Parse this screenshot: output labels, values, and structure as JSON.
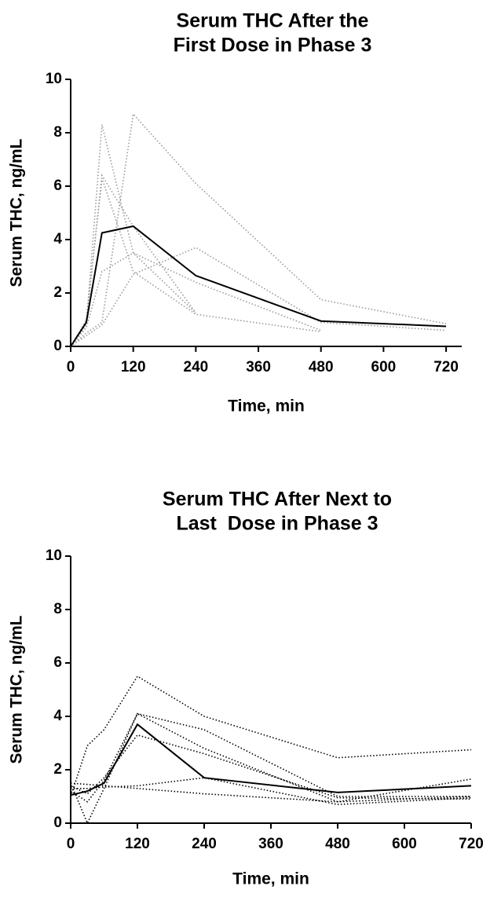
{
  "chart_data": [
    {
      "type": "line",
      "title": [
        "Serum THC After the",
        "First Dose in Phase 3"
      ],
      "x_label": "Time, min",
      "y_label": "Serum THC, ng/mL",
      "x": [
        0,
        30,
        60,
        120,
        240,
        480,
        720
      ],
      "xlim": [
        0,
        750
      ],
      "xticks": [
        0,
        120,
        240,
        360,
        480,
        600,
        720
      ],
      "ylim": [
        0,
        10
      ],
      "yticks": [
        0,
        2,
        4,
        6,
        8,
        10
      ],
      "series": [
        {
          "color": "#9a9a9a",
          "values": [
            0,
            0.8,
            8.3,
            3.5,
            1.25,
            null,
            null
          ]
        },
        {
          "color": "#9a9a9a",
          "values": [
            0,
            0.5,
            0.9,
            8.7,
            6.1,
            1.75,
            0.85
          ]
        },
        {
          "color": "#9a9a9a",
          "values": [
            0,
            0.9,
            6.4,
            4.5,
            1.25,
            null,
            null
          ]
        },
        {
          "color": "#9a9a9a",
          "values": [
            0,
            1.0,
            6.3,
            2.8,
            1.2,
            0.55,
            null
          ]
        },
        {
          "color": "#9a9a9a",
          "values": [
            0,
            0.4,
            0.8,
            2.7,
            3.7,
            0.9,
            0.6
          ]
        },
        {
          "color": "#9a9a9a",
          "values": [
            0,
            0.7,
            2.8,
            3.5,
            2.4,
            0.6,
            null
          ]
        },
        {
          "color": "#000000",
          "values": [
            0,
            0.9,
            4.25,
            4.5,
            2.65,
            0.95,
            0.75
          ],
          "solid": true
        }
      ]
    },
    {
      "type": "line",
      "title": [
        "Serum THC After Next to",
        "Last  Dose in Phase 3"
      ],
      "x_label": "Time, min",
      "y_label": "Serum THC, ng/mL",
      "x": [
        0,
        30,
        60,
        120,
        240,
        480,
        720
      ],
      "xlim": [
        0,
        720
      ],
      "xticks": [
        0,
        120,
        240,
        360,
        480,
        600,
        720
      ],
      "ylim": [
        0,
        10
      ],
      "yticks": [
        0,
        2,
        4,
        6,
        8,
        10
      ],
      "series": [
        {
          "color": "#000000",
          "values": [
            1.0,
            2.9,
            3.5,
            5.5,
            4.0,
            2.45,
            2.75
          ]
        },
        {
          "color": "#000000",
          "values": [
            1.5,
            0.0,
            1.3,
            4.1,
            3.5,
            1.0,
            1.0
          ]
        },
        {
          "color": "#000000",
          "values": [
            1.2,
            0.8,
            1.6,
            4.1,
            2.8,
            0.8,
            1.65
          ]
        },
        {
          "color": "#000000",
          "values": [
            1.4,
            1.1,
            1.7,
            3.3,
            2.6,
            0.95,
            0.9
          ]
        },
        {
          "color": "#000000",
          "values": [
            1.5,
            1.45,
            1.4,
            1.3,
            1.1,
            0.8,
            1.0
          ]
        },
        {
          "color": "#000000",
          "values": [
            1.3,
            1.3,
            1.35,
            1.4,
            1.7,
            0.7,
            0.95
          ]
        },
        {
          "color": "#000000",
          "values": [
            1.05,
            1.2,
            1.5,
            3.7,
            1.7,
            1.15,
            1.4
          ],
          "solid": true
        }
      ]
    }
  ]
}
